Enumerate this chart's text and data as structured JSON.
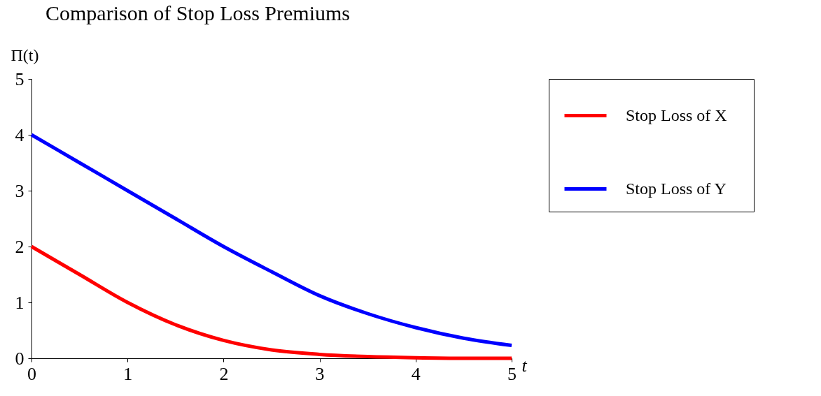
{
  "chart_data": {
    "type": "line",
    "title": "Comparison  of Stop Loss Premiums",
    "xlabel": "t",
    "ylabel": "Π(t)",
    "x": [
      0,
      0.5,
      1,
      1.5,
      2,
      2.5,
      3,
      3.5,
      4,
      4.5,
      5
    ],
    "series": [
      {
        "name": "Stop  Loss  of X",
        "color": "#ff0000",
        "values": [
          2,
          1.5,
          1.0,
          0.6,
          0.32,
          0.15,
          0.07,
          0.03,
          0.01,
          0,
          0
        ]
      },
      {
        "name": "Stop  Loss  of  Y",
        "color": "#0000ff",
        "values": [
          4,
          3.5,
          3.0,
          2.5,
          2.0,
          1.55,
          1.12,
          0.8,
          0.55,
          0.36,
          0.23
        ]
      }
    ],
    "xlim": [
      0,
      5
    ],
    "ylim": [
      0,
      5
    ],
    "xticks": [
      0,
      1,
      2,
      3,
      4,
      5
    ],
    "yticks": [
      0,
      1,
      2,
      3,
      4,
      5
    ],
    "grid": false,
    "legend": "right",
    "marker": "none",
    "line_style": "solid"
  }
}
